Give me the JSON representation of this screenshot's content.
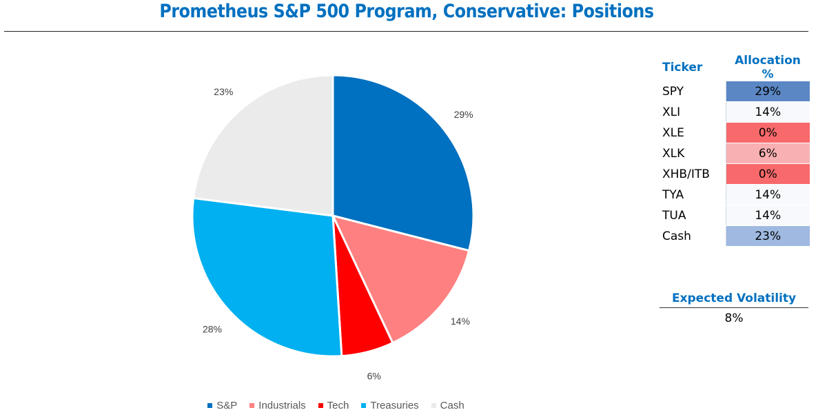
{
  "title": "Prometheus S&P 500 Program, Conservative: Positions",
  "chart_data": {
    "type": "pie",
    "title": "Prometheus S&P 500 Program, Conservative: Positions",
    "slices": [
      {
        "name": "S&P",
        "value": 29,
        "label": "29%",
        "color": "#0070c0"
      },
      {
        "name": "Industrials",
        "value": 14,
        "label": "14%",
        "color": "#ff8080"
      },
      {
        "name": "Tech",
        "value": 6,
        "label": "6%",
        "color": "#ff0000"
      },
      {
        "name": "Treasuries",
        "value": 28,
        "label": "28%",
        "color": "#00b0f0"
      },
      {
        "name": "Cash",
        "value": 23,
        "label": "23%",
        "color": "#ebebeb"
      }
    ],
    "start_angle": "12 o'clock, clockwise",
    "legend_position": "bottom"
  },
  "allocation_table": {
    "headers": [
      "Ticker",
      "Allocation %"
    ],
    "rows": [
      {
        "ticker": "SPY",
        "allocation": "29%",
        "color": "#5b87c5"
      },
      {
        "ticker": "XLI",
        "allocation": "14%",
        "color": "#f7f9fc"
      },
      {
        "ticker": "XLE",
        "allocation": "0%",
        "color": "#f8696b"
      },
      {
        "ticker": "XLK",
        "allocation": "6%",
        "color": "#f9b0b2"
      },
      {
        "ticker": "XHB/ITB",
        "allocation": "0%",
        "color": "#f8696b"
      },
      {
        "ticker": "TYA",
        "allocation": "14%",
        "color": "#f7f9fc"
      },
      {
        "ticker": "TUA",
        "allocation": "14%",
        "color": "#f7f9fc"
      },
      {
        "ticker": "Cash",
        "allocation": "23%",
        "color": "#9fb9e0"
      }
    ]
  },
  "volatility": {
    "label": "Expected Volatility",
    "value": "8%"
  }
}
